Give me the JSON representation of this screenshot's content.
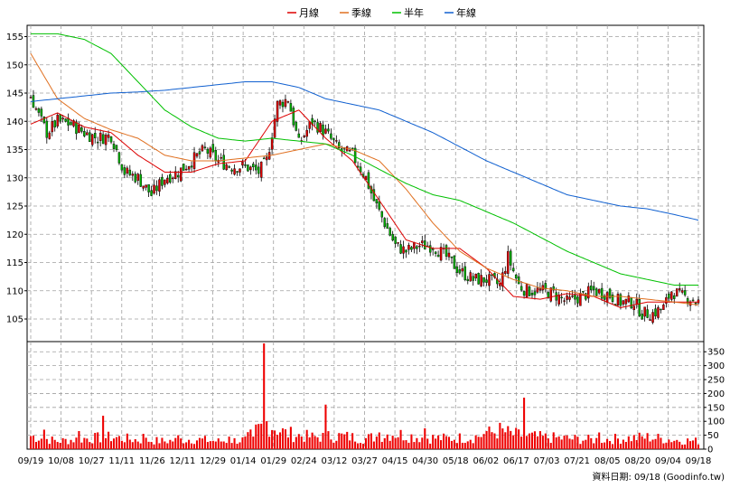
{
  "legend": [
    {
      "name": "月線",
      "color": "#dd0000"
    },
    {
      "name": "季線",
      "color": "#e07020"
    },
    {
      "name": "半年",
      "color": "#00c000"
    },
    {
      "name": "年線",
      "color": "#1060d0"
    }
  ],
  "source_label": "資料日期: 09/18  (Goodinfo.tw)",
  "chart_data": {
    "type": "candlestick",
    "price_ylim": [
      101,
      157
    ],
    "price_ticks": [
      105,
      110,
      115,
      120,
      125,
      130,
      135,
      140,
      145,
      150,
      155
    ],
    "volume_ylim": [
      0,
      380
    ],
    "volume_ticks": [
      0,
      50,
      100,
      150,
      200,
      250,
      300,
      350
    ],
    "x_tick_labels": [
      "09/19",
      "10/08",
      "10/27",
      "11/11",
      "11/26",
      "12/11",
      "12/29",
      "01/14",
      "01/29",
      "02/24",
      "03/12",
      "03/27",
      "04/15",
      "04/30",
      "05/18",
      "06/02",
      "06/17",
      "07/03",
      "07/21",
      "08/05",
      "08/20",
      "09/04",
      "09/18"
    ],
    "trading_days": 250,
    "ma_series": {
      "月線": [
        [
          0,
          139.5
        ],
        [
          10,
          141.5
        ],
        [
          20,
          139
        ],
        [
          30,
          138
        ],
        [
          40,
          134
        ],
        [
          50,
          131
        ],
        [
          60,
          131
        ],
        [
          70,
          132.5
        ],
        [
          80,
          133
        ],
        [
          90,
          140
        ],
        [
          100,
          142
        ],
        [
          110,
          137
        ],
        [
          120,
          133
        ],
        [
          130,
          126
        ],
        [
          140,
          119
        ],
        [
          150,
          117.5
        ],
        [
          160,
          117.5
        ],
        [
          170,
          114
        ],
        [
          180,
          109
        ],
        [
          190,
          108.5
        ],
        [
          200,
          109.5
        ],
        [
          210,
          109
        ],
        [
          220,
          107
        ],
        [
          230,
          108
        ],
        [
          240,
          108
        ],
        [
          249,
          108
        ]
      ],
      "季線": [
        [
          0,
          152
        ],
        [
          10,
          144
        ],
        [
          20,
          140.5
        ],
        [
          30,
          138.5
        ],
        [
          40,
          137
        ],
        [
          50,
          134
        ],
        [
          60,
          133
        ],
        [
          70,
          133
        ],
        [
          80,
          133.5
        ],
        [
          90,
          134
        ],
        [
          100,
          135
        ],
        [
          110,
          136
        ],
        [
          120,
          135
        ],
        [
          130,
          133
        ],
        [
          140,
          128
        ],
        [
          150,
          122
        ],
        [
          160,
          117
        ],
        [
          170,
          114
        ],
        [
          180,
          112
        ],
        [
          190,
          110.5
        ],
        [
          200,
          110
        ],
        [
          210,
          109
        ],
        [
          220,
          109
        ],
        [
          230,
          108.5
        ],
        [
          240,
          108
        ],
        [
          249,
          107.5
        ]
      ],
      "半年": [
        [
          0,
          155.5
        ],
        [
          10,
          155.5
        ],
        [
          20,
          154.5
        ],
        [
          30,
          152
        ],
        [
          40,
          147
        ],
        [
          50,
          142
        ],
        [
          60,
          139
        ],
        [
          70,
          137
        ],
        [
          80,
          136.5
        ],
        [
          90,
          137
        ],
        [
          100,
          136.5
        ],
        [
          110,
          136
        ],
        [
          120,
          134
        ],
        [
          130,
          131.5
        ],
        [
          140,
          129
        ],
        [
          150,
          127
        ],
        [
          160,
          126
        ],
        [
          170,
          124
        ],
        [
          180,
          122
        ],
        [
          190,
          119.5
        ],
        [
          200,
          117
        ],
        [
          210,
          115
        ],
        [
          220,
          113
        ],
        [
          230,
          112
        ],
        [
          240,
          111
        ],
        [
          249,
          111
        ]
      ],
      "年線": [
        [
          0,
          143.5
        ],
        [
          10,
          144
        ],
        [
          20,
          144.5
        ],
        [
          30,
          145
        ],
        [
          40,
          145.2
        ],
        [
          50,
          145.5
        ],
        [
          60,
          146
        ],
        [
          70,
          146.5
        ],
        [
          80,
          147
        ],
        [
          90,
          147
        ],
        [
          100,
          146
        ],
        [
          110,
          144
        ],
        [
          120,
          143
        ],
        [
          130,
          142
        ],
        [
          140,
          140
        ],
        [
          150,
          138
        ],
        [
          160,
          135.5
        ],
        [
          170,
          133
        ],
        [
          180,
          131
        ],
        [
          190,
          129
        ],
        [
          200,
          127
        ],
        [
          210,
          126
        ],
        [
          220,
          125
        ],
        [
          230,
          124.5
        ],
        [
          240,
          123.5
        ],
        [
          249,
          122.5
        ]
      ]
    },
    "price_anchors": [
      [
        0,
        144.5
      ],
      [
        3,
        141
      ],
      [
        6,
        138
      ],
      [
        10,
        140
      ],
      [
        15,
        139.5
      ],
      [
        20,
        138
      ],
      [
        25,
        137
      ],
      [
        30,
        137.5
      ],
      [
        35,
        131
      ],
      [
        40,
        130
      ],
      [
        45,
        127
      ],
      [
        50,
        130
      ],
      [
        55,
        131
      ],
      [
        60,
        133
      ],
      [
        65,
        135
      ],
      [
        70,
        133
      ],
      [
        75,
        132
      ],
      [
        80,
        132
      ],
      [
        85,
        131
      ],
      [
        88,
        133
      ],
      [
        92,
        143
      ],
      [
        96,
        144
      ],
      [
        100,
        136
      ],
      [
        105,
        140
      ],
      [
        110,
        138
      ],
      [
        115,
        135
      ],
      [
        120,
        134
      ],
      [
        125,
        130
      ],
      [
        128,
        126
      ],
      [
        132,
        122
      ],
      [
        136,
        118
      ],
      [
        140,
        117
      ],
      [
        145,
        118
      ],
      [
        150,
        118
      ],
      [
        155,
        116
      ],
      [
        160,
        113.5
      ],
      [
        165,
        112
      ],
      [
        170,
        112
      ],
      [
        175,
        111
      ],
      [
        178,
        116
      ],
      [
        182,
        111
      ],
      [
        185,
        110
      ],
      [
        190,
        110
      ],
      [
        195,
        109.5
      ],
      [
        200,
        108
      ],
      [
        205,
        109
      ],
      [
        210,
        110
      ],
      [
        215,
        109.5
      ],
      [
        220,
        108
      ],
      [
        225,
        108
      ],
      [
        228,
        106
      ],
      [
        232,
        106
      ],
      [
        236,
        107
      ],
      [
        239,
        110
      ],
      [
        243,
        109
      ],
      [
        247,
        108.5
      ],
      [
        249,
        108
      ]
    ],
    "volume_anchors": [
      [
        0,
        50
      ],
      [
        10,
        30
      ],
      [
        20,
        40
      ],
      [
        30,
        45
      ],
      [
        40,
        35
      ],
      [
        50,
        30
      ],
      [
        60,
        38
      ],
      [
        70,
        30
      ],
      [
        80,
        35
      ],
      [
        88,
        100
      ],
      [
        95,
        60
      ],
      [
        105,
        45
      ],
      [
        115,
        50
      ],
      [
        125,
        40
      ],
      [
        135,
        60
      ],
      [
        145,
        45
      ],
      [
        155,
        40
      ],
      [
        165,
        45
      ],
      [
        175,
        70
      ],
      [
        180,
        55
      ],
      [
        190,
        45
      ],
      [
        200,
        40
      ],
      [
        210,
        35
      ],
      [
        220,
        40
      ],
      [
        230,
        45
      ],
      [
        240,
        35
      ],
      [
        249,
        30
      ]
    ],
    "volume_spikes": [
      [
        5,
        70
      ],
      [
        18,
        65
      ],
      [
        27,
        120
      ],
      [
        42,
        55
      ],
      [
        55,
        50
      ],
      [
        74,
        45
      ],
      [
        83,
        45
      ],
      [
        87,
        380
      ],
      [
        110,
        160
      ],
      [
        130,
        60
      ],
      [
        147,
        75
      ],
      [
        170,
        65
      ],
      [
        184,
        185
      ],
      [
        212,
        60
      ]
    ]
  }
}
